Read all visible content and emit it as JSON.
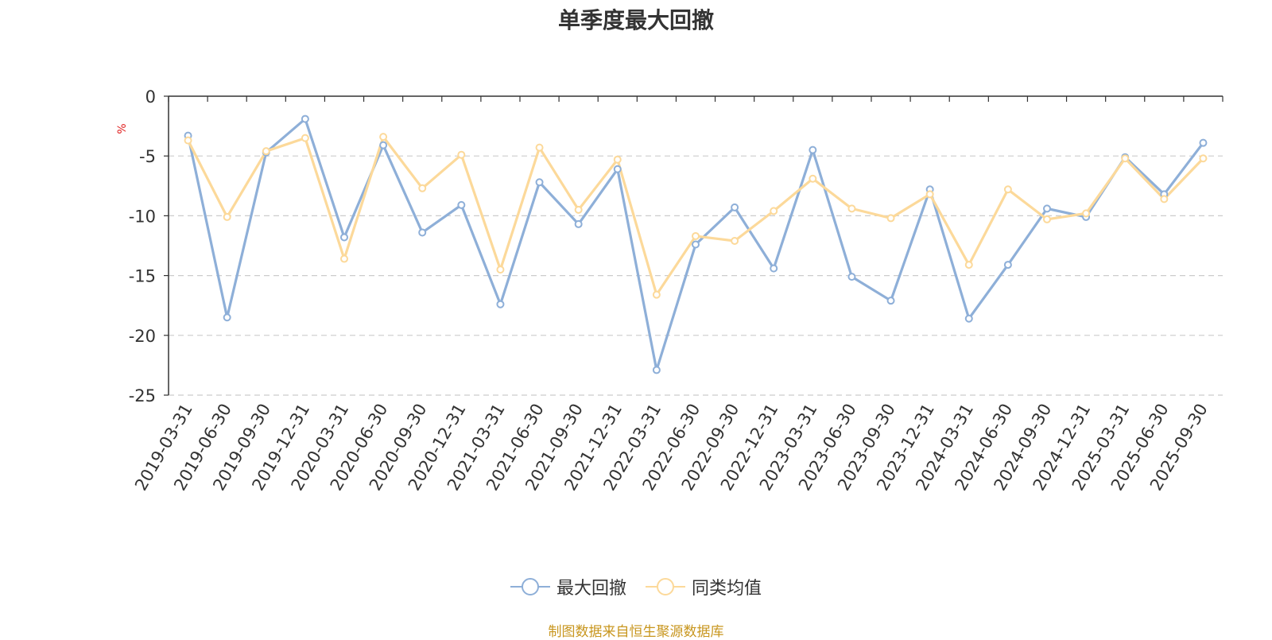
{
  "chart_data": {
    "type": "line",
    "title": "单季度最大回撤",
    "ylabel": "%",
    "ylim": [
      -25,
      0
    ],
    "yticks": [
      0,
      -5,
      -10,
      -15,
      -20,
      -25
    ],
    "grid": true,
    "legend_position": "bottom",
    "categories": [
      "2019-03-31",
      "2019-06-30",
      "2019-09-30",
      "2019-12-31",
      "2020-03-31",
      "2020-06-30",
      "2020-09-30",
      "2020-12-31",
      "2021-03-31",
      "2021-06-30",
      "2021-09-30",
      "2021-12-31",
      "2022-03-31",
      "2022-06-30",
      "2022-09-30",
      "2022-12-31",
      "2023-03-31",
      "2023-06-30",
      "2023-09-30",
      "2023-12-31",
      "2024-03-31",
      "2024-06-30",
      "2024-09-30",
      "2024-12-31",
      "2025-03-31",
      "2025-06-30",
      "2025-09-30"
    ],
    "series": [
      {
        "name": "最大回撤",
        "color": "#8eafd8",
        "values": [
          -3.3,
          -18.5,
          -4.7,
          -1.9,
          -11.8,
          -4.1,
          -11.4,
          -9.1,
          -17.4,
          -7.2,
          -10.7,
          -6.1,
          -22.9,
          -12.4,
          -9.3,
          -14.4,
          -4.5,
          -15.1,
          -17.1,
          -7.8,
          -18.6,
          -14.1,
          -9.4,
          -10.1,
          -5.1,
          -8.2,
          -3.9
        ]
      },
      {
        "name": "同类均值",
        "color": "#fcd99a",
        "values": [
          -3.7,
          -10.1,
          -4.6,
          -3.5,
          -13.6,
          -3.4,
          -7.7,
          -4.9,
          -14.5,
          -4.3,
          -9.5,
          -5.3,
          -16.6,
          -11.7,
          -12.1,
          -9.6,
          -6.9,
          -9.4,
          -10.2,
          -8.2,
          -14.1,
          -7.8,
          -10.3,
          -9.8,
          -5.2,
          -8.6,
          -5.2
        ]
      }
    ]
  },
  "source_text": "制图数据来自恒生聚源数据库"
}
